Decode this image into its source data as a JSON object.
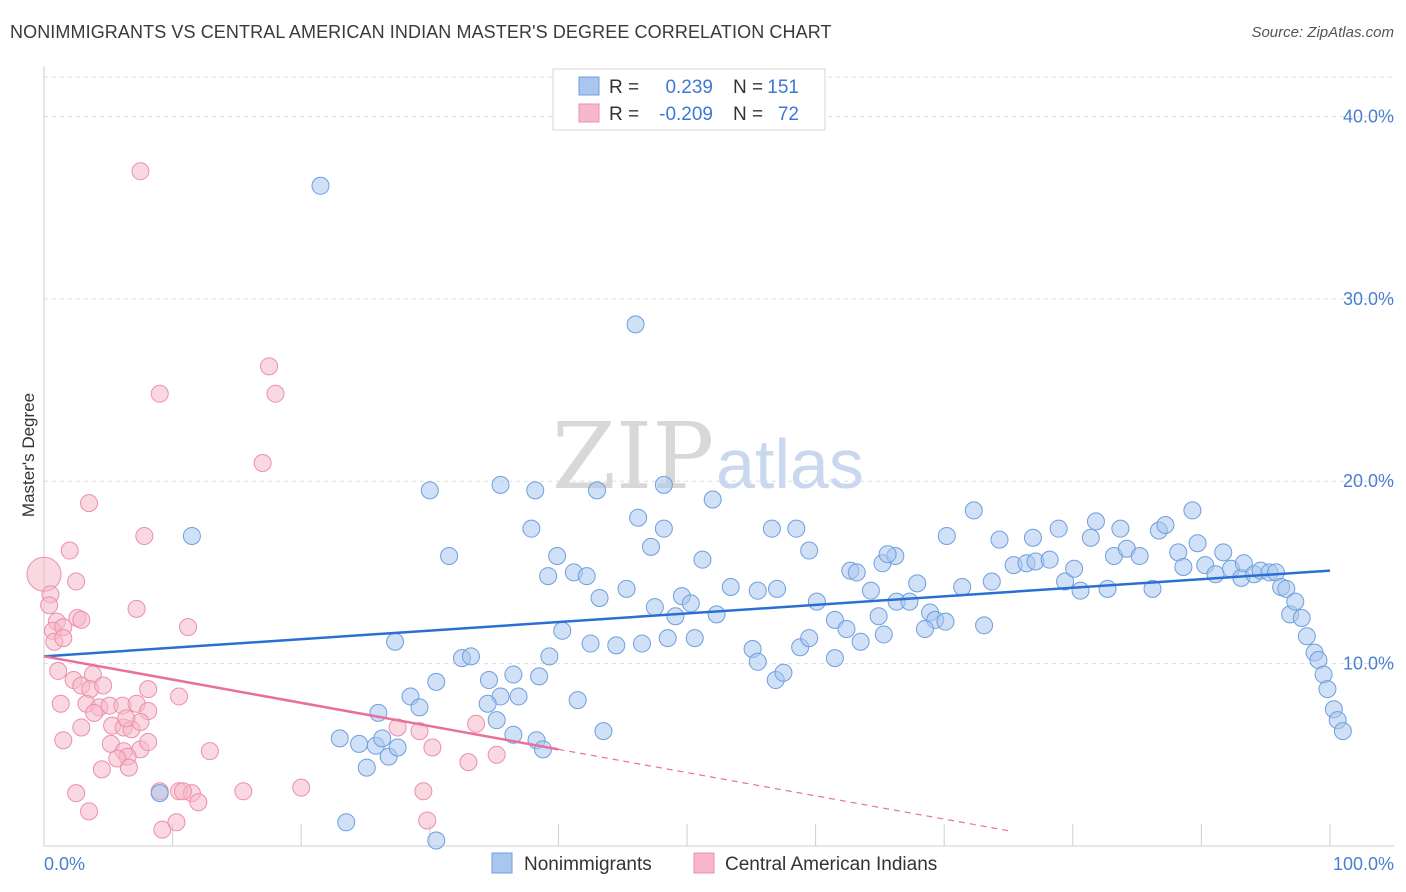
{
  "title": "NONIMMIGRANTS VS CENTRAL AMERICAN INDIAN MASTER'S DEGREE CORRELATION CHART",
  "source": "Source: ZipAtlas.com",
  "watermark": {
    "zip": "ZIP",
    "atlas": "atlas"
  },
  "colors": {
    "blue_fill": "#a9c6ee",
    "blue_stroke": "#6e9fde",
    "blue_line": "#2b6fd1",
    "pink_fill": "#f6b8ca",
    "pink_stroke": "#ec8fac",
    "pink_line": "#e8709a",
    "tick_text": "#4a7fd0",
    "grid": "#dddddd"
  },
  "legend": {
    "rows": [
      {
        "r_label": "R =",
        "r_value": "0.239",
        "n_label": "N =",
        "n_value": "151"
      },
      {
        "r_label": "R =",
        "r_value": "-0.209",
        "n_label": "N =",
        "n_value": "72"
      }
    ]
  },
  "chart_data": {
    "type": "scatter",
    "title": "NONIMMIGRANTS VS CENTRAL AMERICAN INDIAN MASTER'S DEGREE CORRELATION CHART",
    "xlabel": "",
    "ylabel": "Master's Degree",
    "xlim": [
      0,
      100
    ],
    "ylim": [
      0,
      42
    ],
    "x_tick_labels": [
      "0.0%",
      "100.0%"
    ],
    "y_ticks": [
      10,
      20,
      30,
      40
    ],
    "y_tick_labels": [
      "10.0%",
      "20.0%",
      "30.0%",
      "40.0%"
    ],
    "grid": true,
    "legend_position": "top-center",
    "series": [
      {
        "name": "Nonimmigrants",
        "color": "#a9c6ee",
        "trend": {
          "x0": 0,
          "y0": 10.4,
          "x1": 100,
          "y1": 15.1,
          "x_end_solid": 100
        },
        "points": [
          [
            21.5,
            36.2
          ],
          [
            46,
            28.6
          ],
          [
            11.5,
            17
          ],
          [
            30,
            19.5
          ],
          [
            35.5,
            19.8
          ],
          [
            38.2,
            19.5
          ],
          [
            43,
            19.5
          ],
          [
            48.2,
            19.8
          ],
          [
            52,
            19
          ],
          [
            31.5,
            15.9
          ],
          [
            37.9,
            17.4
          ],
          [
            39.9,
            15.9
          ],
          [
            41.2,
            15
          ],
          [
            42.2,
            14.8
          ],
          [
            43.2,
            13.6
          ],
          [
            45.3,
            14.1
          ],
          [
            46.2,
            18
          ],
          [
            47.2,
            16.4
          ],
          [
            48.2,
            17.4
          ],
          [
            47.5,
            13.1
          ],
          [
            49.1,
            12.6
          ],
          [
            49.6,
            13.7
          ],
          [
            50.3,
            13.3
          ],
          [
            51.2,
            15.7
          ],
          [
            52.3,
            12.7
          ],
          [
            53.4,
            14.2
          ],
          [
            55.5,
            14
          ],
          [
            57,
            14.1
          ],
          [
            56.6,
            17.4
          ],
          [
            58.5,
            17.4
          ],
          [
            59.5,
            16.2
          ],
          [
            60.1,
            13.4
          ],
          [
            61.5,
            12.4
          ],
          [
            62.4,
            11.9
          ],
          [
            62.7,
            15.1
          ],
          [
            63.2,
            15
          ],
          [
            64.3,
            14
          ],
          [
            65.2,
            15.5
          ],
          [
            66.2,
            15.9
          ],
          [
            65.6,
            16
          ],
          [
            64.9,
            12.6
          ],
          [
            66.3,
            13.4
          ],
          [
            67.3,
            13.4
          ],
          [
            67.9,
            14.4
          ],
          [
            68.9,
            12.8
          ],
          [
            69.3,
            12.4
          ],
          [
            70.1,
            12.3
          ],
          [
            68.5,
            11.9
          ],
          [
            70.2,
            17
          ],
          [
            71.4,
            14.2
          ],
          [
            72.3,
            18.4
          ],
          [
            73.1,
            12.1
          ],
          [
            73.7,
            14.5
          ],
          [
            74.3,
            16.8
          ],
          [
            75.4,
            15.4
          ],
          [
            76.4,
            15.5
          ],
          [
            77.1,
            15.6
          ],
          [
            78.2,
            15.7
          ],
          [
            76.9,
            16.9
          ],
          [
            78.9,
            17.4
          ],
          [
            79.4,
            14.5
          ],
          [
            80.1,
            15.2
          ],
          [
            80.6,
            14
          ],
          [
            81.4,
            16.9
          ],
          [
            81.8,
            17.8
          ],
          [
            82.7,
            14.1
          ],
          [
            83.2,
            15.9
          ],
          [
            83.7,
            17.4
          ],
          [
            84.2,
            16.3
          ],
          [
            85.2,
            15.9
          ],
          [
            86.2,
            14.1
          ],
          [
            86.7,
            17.3
          ],
          [
            87.2,
            17.6
          ],
          [
            88.2,
            16.1
          ],
          [
            88.6,
            15.3
          ],
          [
            89.3,
            18.4
          ],
          [
            89.7,
            16.6
          ],
          [
            90.3,
            15.4
          ],
          [
            91.1,
            14.9
          ],
          [
            91.7,
            16.1
          ],
          [
            92.3,
            15.2
          ],
          [
            93.1,
            14.7
          ],
          [
            93.3,
            15.5
          ],
          [
            94.1,
            14.9
          ],
          [
            94.6,
            15.1
          ],
          [
            95.3,
            15
          ],
          [
            95.8,
            15
          ],
          [
            96.2,
            14.2
          ],
          [
            96.6,
            14.1
          ],
          [
            96.9,
            12.7
          ],
          [
            97.3,
            13.4
          ],
          [
            97.8,
            12.5
          ],
          [
            98.2,
            11.5
          ],
          [
            98.8,
            10.6
          ],
          [
            99.1,
            10.2
          ],
          [
            99.5,
            9.4
          ],
          [
            99.8,
            8.6
          ],
          [
            100.3,
            7.5
          ],
          [
            100.6,
            6.9
          ],
          [
            101,
            6.3
          ],
          [
            39.2,
            14.8
          ],
          [
            40.3,
            11.8
          ],
          [
            42.5,
            11.1
          ],
          [
            44.5,
            11
          ],
          [
            46.5,
            11.1
          ],
          [
            48.5,
            11.4
          ],
          [
            50.6,
            11.4
          ],
          [
            55.1,
            10.8
          ],
          [
            56.9,
            9.1
          ],
          [
            55.5,
            10.1
          ],
          [
            57.5,
            9.5
          ],
          [
            58.8,
            10.9
          ],
          [
            59.5,
            11.4
          ],
          [
            61.5,
            10.3
          ],
          [
            63.5,
            11.2
          ],
          [
            65.3,
            11.6
          ],
          [
            27.3,
            11.2
          ],
          [
            32.5,
            10.3
          ],
          [
            33.2,
            10.4
          ],
          [
            34.6,
            9.1
          ],
          [
            35.5,
            8.2
          ],
          [
            36.5,
            9.4
          ],
          [
            38.5,
            9.3
          ],
          [
            39.3,
            10.4
          ],
          [
            30.5,
            9
          ],
          [
            28.5,
            8.2
          ],
          [
            29.2,
            7.6
          ],
          [
            26,
            7.3
          ],
          [
            24.5,
            5.6
          ],
          [
            25.1,
            4.3
          ],
          [
            25.8,
            5.5
          ],
          [
            26.3,
            5.9
          ],
          [
            26.8,
            4.9
          ],
          [
            27.5,
            5.4
          ],
          [
            35.2,
            6.9
          ],
          [
            36.5,
            6.1
          ],
          [
            38.3,
            5.8
          ],
          [
            38.8,
            5.3
          ],
          [
            41.5,
            8
          ],
          [
            43.5,
            6.3
          ],
          [
            34.5,
            7.8
          ],
          [
            36.9,
            8.2
          ],
          [
            23,
            5.9
          ],
          [
            9,
            2.9
          ],
          [
            23.5,
            1.3
          ],
          [
            30.5,
            0.3
          ]
        ]
      },
      {
        "name": "Central American Indians",
        "color": "#f6b8ca",
        "trend": {
          "x0": 0,
          "y0": 10.4,
          "x1": 40,
          "y1": 5.3,
          "x_end_solid": 40
        },
        "points": [
          [
            7.5,
            37
          ],
          [
            17.5,
            26.3
          ],
          [
            9,
            24.8
          ],
          [
            18,
            24.8
          ],
          [
            17,
            21
          ],
          [
            3.5,
            18.8
          ],
          [
            7.8,
            17
          ],
          [
            2,
            16.2
          ],
          [
            0,
            14.9
          ],
          [
            2.5,
            14.5
          ],
          [
            0.5,
            13.8
          ],
          [
            0.4,
            13.2
          ],
          [
            7.2,
            13
          ],
          [
            11.2,
            12
          ],
          [
            1,
            12.3
          ],
          [
            0.7,
            11.8
          ],
          [
            1.5,
            12
          ],
          [
            2.6,
            12.5
          ],
          [
            2.9,
            12.4
          ],
          [
            0.8,
            11.2
          ],
          [
            1.5,
            11.4
          ],
          [
            1.1,
            9.6
          ],
          [
            2.3,
            9.1
          ],
          [
            2.9,
            8.8
          ],
          [
            3.8,
            9.4
          ],
          [
            3.6,
            8.6
          ],
          [
            4.6,
            8.8
          ],
          [
            8.1,
            8.6
          ],
          [
            10.5,
            8.2
          ],
          [
            1.3,
            7.8
          ],
          [
            3.3,
            7.8
          ],
          [
            4.3,
            7.6
          ],
          [
            5.1,
            7.7
          ],
          [
            6.1,
            7.7
          ],
          [
            7.2,
            7.8
          ],
          [
            8.1,
            7.4
          ],
          [
            3.9,
            7.3
          ],
          [
            2.9,
            6.5
          ],
          [
            5.3,
            6.6
          ],
          [
            6.2,
            6.5
          ],
          [
            6.8,
            6.4
          ],
          [
            7.5,
            6.8
          ],
          [
            6.4,
            7
          ],
          [
            1.5,
            5.8
          ],
          [
            5.2,
            5.6
          ],
          [
            6.2,
            5.2
          ],
          [
            7.5,
            5.3
          ],
          [
            8.1,
            5.7
          ],
          [
            6.5,
            4.9
          ],
          [
            5.7,
            4.8
          ],
          [
            12.9,
            5.2
          ],
          [
            4.5,
            4.2
          ],
          [
            6.6,
            4.3
          ],
          [
            2.5,
            2.9
          ],
          [
            9,
            3
          ],
          [
            10.5,
            3
          ],
          [
            11.5,
            2.9
          ],
          [
            12,
            2.4
          ],
          [
            15.5,
            3
          ],
          [
            20,
            3.2
          ],
          [
            29.5,
            3
          ],
          [
            3.5,
            1.9
          ],
          [
            9.2,
            0.9
          ],
          [
            10.3,
            1.3
          ],
          [
            29.8,
            1.4
          ],
          [
            27.5,
            6.5
          ],
          [
            29.2,
            6.3
          ],
          [
            30.2,
            5.4
          ],
          [
            33.6,
            6.7
          ],
          [
            33,
            4.6
          ],
          [
            35.2,
            5
          ],
          [
            10.8,
            3
          ]
        ]
      }
    ]
  },
  "bottom_legend": [
    {
      "label": "Nonimmigrants"
    },
    {
      "label": "Central American Indians"
    }
  ]
}
